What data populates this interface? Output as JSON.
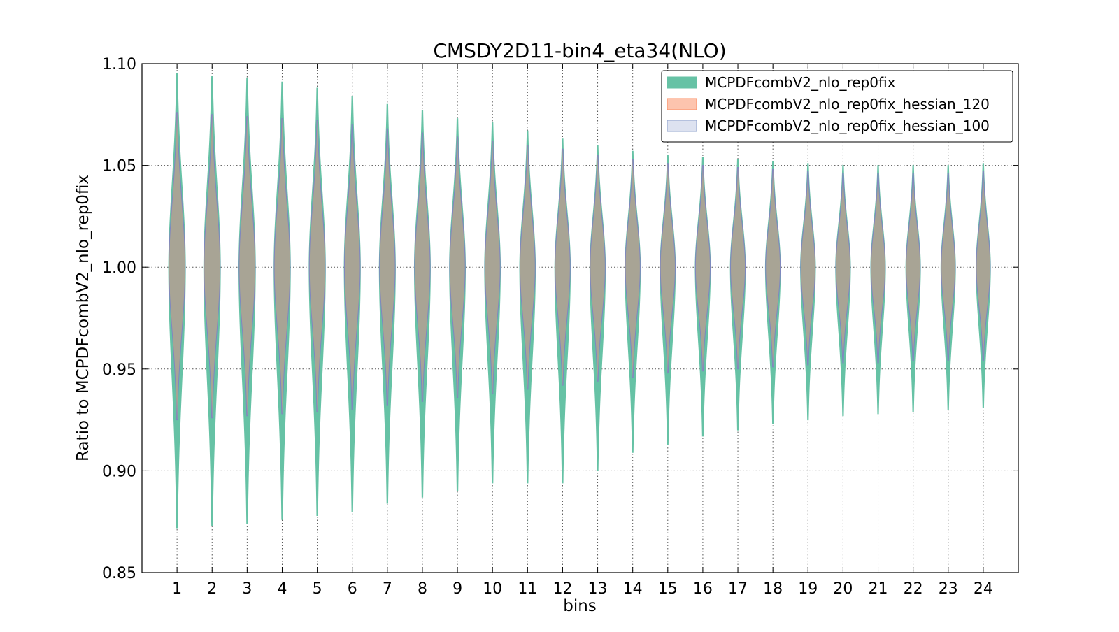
{
  "chart_data": {
    "type": "violin",
    "title": "CMSDY2D11-bin4_eta34(NLO)",
    "xlabel": "bins",
    "ylabel": "Ratio to MCPDFcombV2_nlo_rep0fix",
    "ylim": [
      0.85,
      1.1
    ],
    "xlim": [
      0,
      25
    ],
    "yticks": [
      "0.85",
      "0.90",
      "0.95",
      "1.00",
      "1.05",
      "1.10"
    ],
    "categories": [
      "1",
      "2",
      "3",
      "4",
      "5",
      "6",
      "7",
      "8",
      "9",
      "10",
      "11",
      "12",
      "13",
      "14",
      "15",
      "16",
      "17",
      "18",
      "19",
      "20",
      "21",
      "22",
      "23",
      "24"
    ],
    "grid": true,
    "legend_position": "top-right",
    "colors": {
      "overlap_fill": "#a8a495",
      "outline": "#7f86c0",
      "grid": "#555555"
    },
    "series": [
      {
        "name": "MCPDFcombV2_nlo_rep0fix",
        "color": "#66c2a5",
        "max": [
          1.095,
          1.094,
          1.093,
          1.091,
          1.088,
          1.084,
          1.08,
          1.077,
          1.073,
          1.071,
          1.067,
          1.063,
          1.06,
          1.057,
          1.055,
          1.054,
          1.053,
          1.052,
          1.051,
          1.05,
          1.05,
          1.05,
          1.05,
          1.051
        ],
        "min": [
          0.872,
          0.873,
          0.874,
          0.876,
          0.878,
          0.88,
          0.884,
          0.887,
          0.89,
          0.894,
          0.894,
          0.894,
          0.9,
          0.909,
          0.913,
          0.917,
          0.92,
          0.923,
          0.925,
          0.927,
          0.928,
          0.929,
          0.93,
          0.931
        ]
      },
      {
        "name": "MCPDFcombV2_nlo_rep0fix_hessian_120",
        "color": "#fc8d62",
        "max": [
          1.076,
          1.075,
          1.074,
          1.073,
          1.072,
          1.07,
          1.068,
          1.066,
          1.064,
          1.062,
          1.06,
          1.058,
          1.055,
          1.053,
          1.051,
          1.05,
          1.049,
          1.048,
          1.047,
          1.046,
          1.046,
          1.046,
          1.046,
          1.047
        ],
        "min": [
          0.925,
          0.926,
          0.927,
          0.928,
          0.929,
          0.93,
          0.932,
          0.934,
          0.936,
          0.938,
          0.94,
          0.942,
          0.944,
          0.946,
          0.948,
          0.949,
          0.95,
          0.951,
          0.952,
          0.953,
          0.953,
          0.954,
          0.954,
          0.954
        ]
      },
      {
        "name": "MCPDFcombV2_nlo_rep0fix_hessian_100",
        "color": "#8da0cb",
        "max": [
          1.076,
          1.075,
          1.074,
          1.073,
          1.072,
          1.07,
          1.068,
          1.066,
          1.064,
          1.062,
          1.06,
          1.058,
          1.055,
          1.053,
          1.051,
          1.05,
          1.049,
          1.048,
          1.047,
          1.046,
          1.046,
          1.046,
          1.046,
          1.047
        ],
        "min": [
          0.925,
          0.926,
          0.927,
          0.928,
          0.929,
          0.93,
          0.932,
          0.934,
          0.936,
          0.938,
          0.94,
          0.942,
          0.944,
          0.946,
          0.948,
          0.949,
          0.95,
          0.951,
          0.952,
          0.953,
          0.953,
          0.954,
          0.954,
          0.954
        ]
      }
    ]
  }
}
